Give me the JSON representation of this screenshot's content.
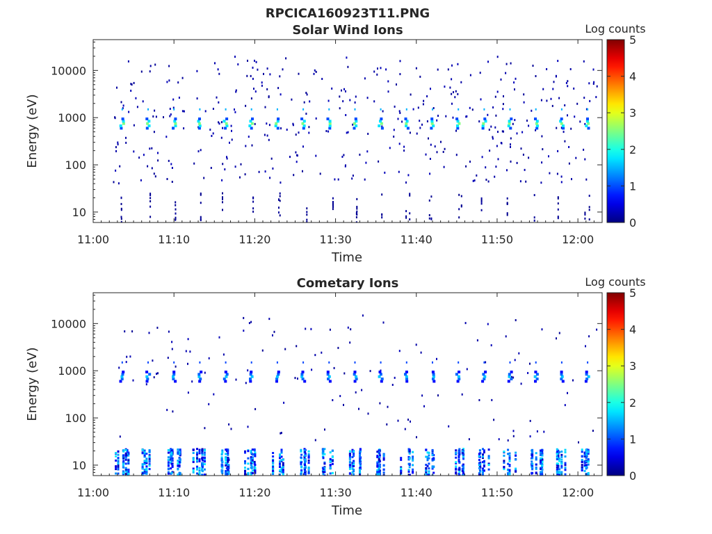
{
  "figure_title": "RPCICA160923T11.PNG",
  "chart_data": [
    {
      "type": "heatmap",
      "title": "Solar Wind Ions",
      "xlabel": "Time",
      "ylabel": "Energy (eV)",
      "x_tick_labels": [
        "11:00",
        "11:10",
        "11:20",
        "11:30",
        "11:40",
        "11:50",
        "12:00"
      ],
      "x_range_minutes": [
        0,
        63
      ],
      "y_scale": "log",
      "y_tick_labels": [
        "10",
        "100",
        "1000",
        "10000"
      ],
      "y_range_eV": [
        6,
        45000
      ],
      "colorbar": {
        "label": "Log counts",
        "ticks": [
          "0",
          "1",
          "2",
          "3",
          "4",
          "5"
        ],
        "range": [
          0,
          5
        ],
        "colormap": "jet"
      },
      "sweep_times_min": [
        3.6,
        6.8,
        10.0,
        13.2,
        16.4,
        19.6,
        22.8,
        26.0,
        29.2,
        32.4,
        35.6,
        38.8,
        42.0,
        45.2,
        48.4,
        51.6,
        54.8,
        58.0,
        61.2
      ],
      "peak_energy_eV": 750,
      "peak_log_counts": 2.5,
      "background_energy_range_eV": [
        40,
        20000
      ],
      "background_log_counts": 0.2,
      "low_energy_range_eV": [
        6,
        25
      ],
      "low_energy_log_counts": 0.1
    },
    {
      "type": "heatmap",
      "title": "Cometary Ions",
      "xlabel": "Time",
      "ylabel": "Energy (eV)",
      "x_tick_labels": [
        "11:00",
        "11:10",
        "11:20",
        "11:30",
        "11:40",
        "11:50",
        "12:00"
      ],
      "x_range_minutes": [
        0,
        63
      ],
      "y_scale": "log",
      "y_tick_labels": [
        "10",
        "100",
        "1000",
        "10000"
      ],
      "y_range_eV": [
        6,
        45000
      ],
      "colorbar": {
        "label": "Log counts",
        "ticks": [
          "0",
          "1",
          "2",
          "3",
          "4",
          "5"
        ],
        "range": [
          0,
          5
        ],
        "colormap": "jet"
      },
      "sweep_times_min": [
        3.6,
        6.8,
        10.0,
        13.2,
        16.4,
        19.6,
        22.8,
        26.0,
        29.2,
        32.4,
        35.6,
        38.8,
        42.0,
        45.2,
        48.4,
        51.6,
        54.8,
        58.0,
        61.2
      ],
      "peak_energy_eV": 750,
      "peak_log_counts": 1.6,
      "low_energy_range_eV": [
        6,
        22
      ],
      "low_energy_log_counts": 1.3,
      "background_energy_range_eV": [
        30,
        15000
      ],
      "background_log_counts": 0.2
    }
  ]
}
